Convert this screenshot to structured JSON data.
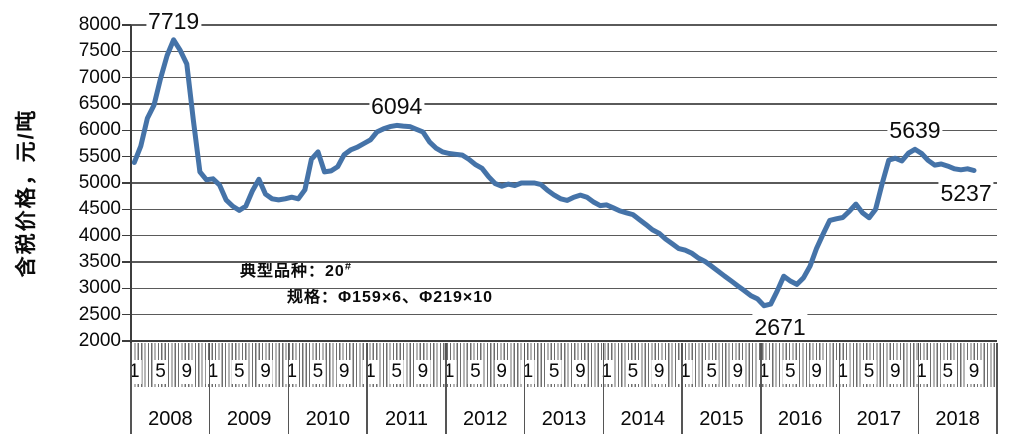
{
  "chart_data": {
    "type": "line",
    "title": "",
    "ylabel": "含税价格，元/吨",
    "xlabel": "",
    "ylim": [
      2000,
      8000
    ],
    "ytick_interval": 500,
    "ytick_labels": [
      "8000",
      "7500",
      "7000",
      "6500",
      "6000",
      "5500",
      "5000",
      "4500",
      "4000",
      "3500",
      "3000",
      "2500",
      "2000"
    ],
    "x_years": [
      "2008",
      "2009",
      "2010",
      "2011",
      "2012",
      "2013",
      "2014",
      "2015",
      "2016",
      "2017",
      "2018"
    ],
    "month_tick_labels": [
      "1",
      "5",
      "9"
    ],
    "grid": "horizontal",
    "legend": "none",
    "series": [
      {
        "name": "含税价格",
        "color": "#4573A8",
        "start": "2008-01",
        "end": "2018-09",
        "values": [
          5390,
          5700,
          6230,
          6480,
          6980,
          7420,
          7719,
          7520,
          7260,
          6200,
          5210,
          5060,
          5080,
          4960,
          4680,
          4560,
          4480,
          4560,
          4850,
          5070,
          4790,
          4700,
          4680,
          4700,
          4730,
          4700,
          4870,
          5450,
          5590,
          5210,
          5230,
          5310,
          5540,
          5630,
          5680,
          5750,
          5820,
          5970,
          6030,
          6070,
          6094,
          6080,
          6070,
          6020,
          5970,
          5780,
          5660,
          5590,
          5560,
          5545,
          5530,
          5450,
          5350,
          5280,
          5120,
          4990,
          4940,
          4980,
          4950,
          5000,
          5000,
          5000,
          4970,
          4860,
          4770,
          4700,
          4670,
          4730,
          4770,
          4730,
          4640,
          4570,
          4585,
          4530,
          4470,
          4435,
          4400,
          4305,
          4210,
          4110,
          4045,
          3935,
          3845,
          3755,
          3725,
          3665,
          3575,
          3510,
          3420,
          3325,
          3230,
          3140,
          3045,
          2955,
          2860,
          2800,
          2671,
          2700,
          2950,
          3230,
          3140,
          3075,
          3200,
          3420,
          3760,
          4030,
          4290,
          4320,
          4345,
          4465,
          4600,
          4435,
          4340,
          4500,
          4990,
          5435,
          5470,
          5420,
          5565,
          5639,
          5560,
          5430,
          5340,
          5360,
          5320,
          5270,
          5250,
          5270,
          5237
        ]
      }
    ],
    "callouts": [
      {
        "text": "7719",
        "index": 6,
        "value": 7719,
        "placement": "above"
      },
      {
        "text": "6094",
        "index": 40,
        "value": 6094,
        "placement": "above"
      },
      {
        "text": "2671",
        "index": 96,
        "value": 2671,
        "placement": "below"
      },
      {
        "text": "5639",
        "index": 119,
        "value": 5639,
        "placement": "above"
      },
      {
        "text": "5237",
        "index": 128,
        "value": 5237,
        "placement": "below-left"
      }
    ],
    "inline_notes": {
      "line1_prefix": "典型品种：20",
      "line1_sup": "#",
      "line2": "规格：Φ159×6、Φ219×10"
    },
    "colors": {
      "line": "#4573A8",
      "gridline": "#5A5A5A",
      "axis": "#3D3D3D",
      "background": "#FFFFFF",
      "text": "#0A0A0A"
    }
  }
}
